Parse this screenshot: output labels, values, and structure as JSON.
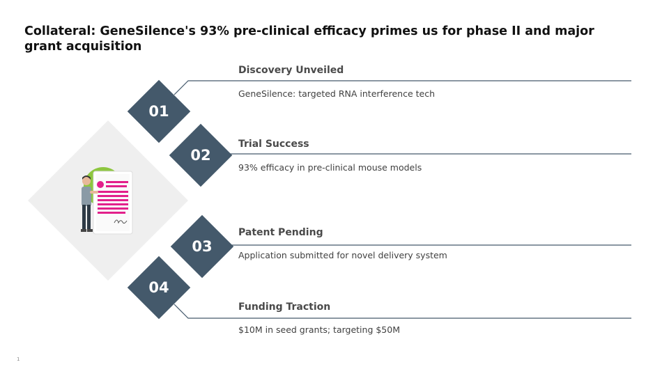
{
  "title": "Collateral: GeneSilence's 93% pre-clinical efficacy primes us for phase II and major grant acquisition",
  "items": [
    {
      "number": "01",
      "title": "Discovery Unveiled",
      "description": "GeneSilence: targeted RNA interference tech"
    },
    {
      "number": "02",
      "title": "Trial Success",
      "description": "93% efficacy in pre-clinical mouse models"
    },
    {
      "number": "03",
      "title": "Patent Pending",
      "description": "Application submitted for novel delivery system"
    },
    {
      "number": "04",
      "title": "Funding Traction",
      "description": "$10M in seed grants; targeting $50M"
    }
  ],
  "page_number": "1",
  "colors": {
    "diamond": "#44596b",
    "backdrop_diamond": "#efefef",
    "accent_magenta": "#e2208b",
    "accent_green": "#8dc63f",
    "line": "#44596b"
  },
  "illustration": "person-presenting-document-illustration"
}
